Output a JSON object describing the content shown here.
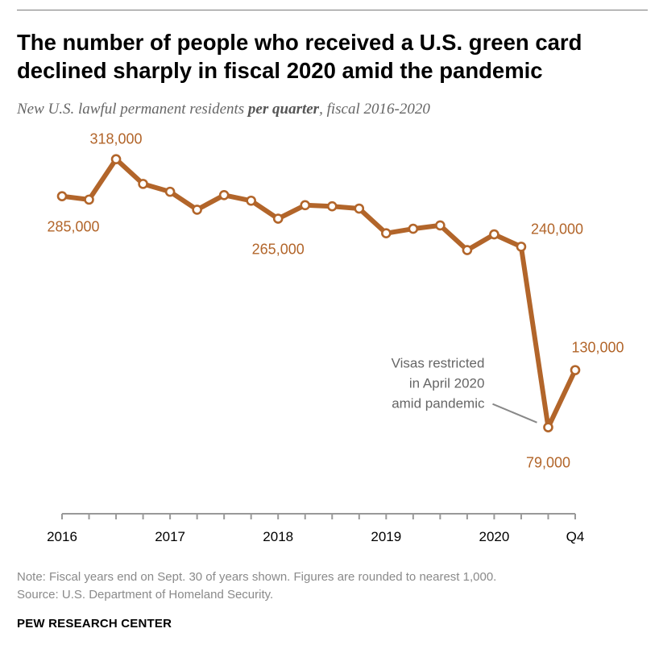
{
  "title": "The number of people who received a U.S. green card declined sharply in fiscal 2020 amid the pandemic",
  "subtitle": {
    "before": "New U.S. lawful permanent residents ",
    "emphasis": "per quarter",
    "after": ", fiscal 2016-2020"
  },
  "note": "Note: Fiscal years end on Sept. 30 of years shown. Figures are rounded to nearest 1,000.",
  "source": "Source: U.S. Department of Homeland Security.",
  "brand": "PEW RESEARCH CENTER",
  "colors": {
    "line": "#b2652a",
    "label": "#b2652a",
    "axis": "#999999",
    "annotation": "#666666"
  },
  "chart_data": {
    "type": "line",
    "title": "",
    "xlabel": "",
    "ylabel": "",
    "grid": false,
    "ylim": [
      40000,
      330000
    ],
    "x_ticks": [
      "2016",
      "2017",
      "2018",
      "2019",
      "2020",
      "Q4"
    ],
    "x_tick_positions": [
      0,
      4,
      8,
      12,
      16,
      19
    ],
    "series": [
      {
        "values": [
          285000,
          282000,
          318000,
          296000,
          289000,
          273000,
          286000,
          281000,
          265000,
          277000,
          276000,
          274000,
          252000,
          256000,
          259000,
          237000,
          251000,
          240000,
          79000,
          130000
        ]
      }
    ],
    "data_labels": [
      {
        "index": 0,
        "text": "285,000",
        "anchor": "below"
      },
      {
        "index": 2,
        "text": "318,000",
        "anchor": "above"
      },
      {
        "index": 8,
        "text": "265,000",
        "anchor": "below"
      },
      {
        "index": 17,
        "text": "240,000",
        "anchor": "right"
      },
      {
        "index": 18,
        "text": "79,000",
        "anchor": "below"
      },
      {
        "index": 19,
        "text": "130,000",
        "anchor": "above"
      }
    ],
    "annotation": {
      "index": 18,
      "lines": [
        "Visas restricted",
        "in April 2020",
        "amid pandemic"
      ]
    }
  }
}
